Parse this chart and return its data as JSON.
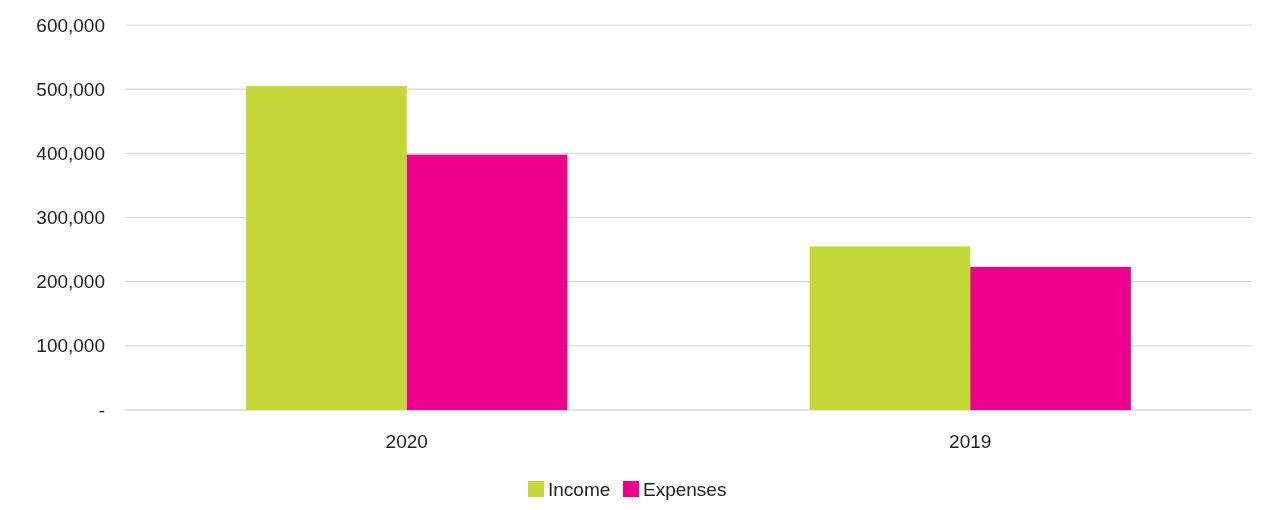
{
  "chart_data": {
    "type": "bar",
    "categories": [
      "2020",
      "2019"
    ],
    "series": [
      {
        "name": "Income",
        "color": "#c3d939",
        "values": [
          505000,
          255000
        ]
      },
      {
        "name": "Expenses",
        "color": "#ec008c",
        "values": [
          398000,
          223000
        ]
      }
    ],
    "ylim": [
      0,
      600000
    ],
    "yticks": [
      {
        "value": 0,
        "label": "-"
      },
      {
        "value": 100000,
        "label": "100,000"
      },
      {
        "value": 200000,
        "label": "200,000"
      },
      {
        "value": 300000,
        "label": "300,000"
      },
      {
        "value": 400000,
        "label": "400,000"
      },
      {
        "value": 500000,
        "label": "500,000"
      },
      {
        "value": 600000,
        "label": "600,000"
      }
    ],
    "grid": "y",
    "legend": "bottom"
  }
}
